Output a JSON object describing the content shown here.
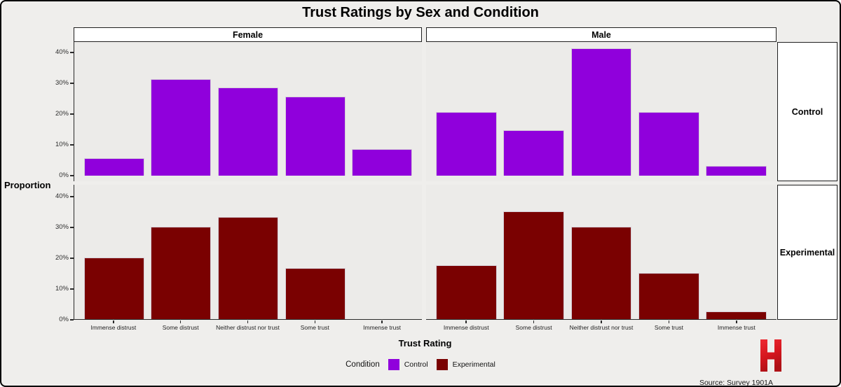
{
  "title": "Trust Ratings by Sex and Condition",
  "axes": {
    "x_title": "Trust Rating",
    "y_title": "Proportion",
    "y_ticks": [
      "0%",
      "10%",
      "20%",
      "30%",
      "40%"
    ]
  },
  "facets": {
    "columns": [
      "Female",
      "Male"
    ],
    "rows": [
      "Control",
      "Experimental"
    ]
  },
  "legend": {
    "title": "Condition",
    "items": [
      {
        "label": "Control",
        "color": "#9000DC"
      },
      {
        "label": "Experimental",
        "color": "#7A0101"
      }
    ]
  },
  "footer": {
    "source": "Source: Survey 1901A",
    "logo_letter": "H",
    "logo_color": "#D2151C"
  },
  "chart_data": {
    "type": "bar",
    "title": "Trust Ratings by Sex and Condition",
    "xlabel": "Trust Rating",
    "ylabel": "Proportion",
    "unit": "percent",
    "ylim": [
      0,
      44
    ],
    "grid": false,
    "legend_position": "bottom",
    "categories": [
      "Immense distrust",
      "Some distrust",
      "Neither distrust nor trust",
      "Some trust",
      "Immense trust"
    ],
    "facet_cols": [
      "Female",
      "Male"
    ],
    "facet_rows": [
      "Control",
      "Experimental"
    ],
    "series": [
      {
        "facet_col": "Female",
        "facet_row": "Control",
        "condition": "Control",
        "values": [
          5.7,
          31.4,
          28.6,
          25.7,
          8.6
        ]
      },
      {
        "facet_col": "Male",
        "facet_row": "Control",
        "condition": "Control",
        "values": [
          20.7,
          14.8,
          41.4,
          20.7,
          3.1
        ]
      },
      {
        "facet_col": "Female",
        "facet_row": "Experimental",
        "condition": "Experimental",
        "values": [
          20.0,
          30.0,
          33.3,
          16.7,
          0.0
        ]
      },
      {
        "facet_col": "Male",
        "facet_row": "Experimental",
        "condition": "Experimental",
        "values": [
          17.5,
          35.0,
          30.0,
          15.0,
          2.5
        ]
      }
    ]
  },
  "colors": {
    "background": "#EFEEEC",
    "panel": "#ECEBE9",
    "control": "#9000DC",
    "experimental": "#7A0101"
  }
}
